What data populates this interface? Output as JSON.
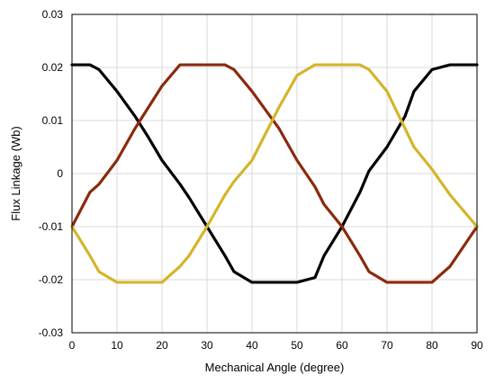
{
  "chart_data": {
    "type": "line",
    "title": "",
    "xlabel": "Mechanical Angle (degree)",
    "ylabel": "Flux Linkage (Wb)",
    "xlim": [
      0,
      90
    ],
    "ylim": [
      -0.03,
      0.03
    ],
    "xticks": [
      0,
      10,
      20,
      30,
      40,
      50,
      60,
      70,
      80,
      90
    ],
    "yticks": [
      0.03,
      0.02,
      0.01,
      0,
      -0.01,
      -0.02,
      -0.03
    ],
    "xtick_labels": [
      "0",
      "10",
      "20",
      "30",
      "40",
      "50",
      "60",
      "70",
      "80",
      "90"
    ],
    "ytick_labels": [
      "0.03",
      "0.02",
      "0.01",
      "0",
      "-0.01",
      "-0.02",
      "-0.03"
    ],
    "grid": true,
    "legend": "none",
    "series": [
      {
        "color": "#000000",
        "x": [
          0,
          4,
          6,
          10,
          14,
          17,
          20,
          24,
          26,
          30,
          34,
          36,
          40,
          46,
          50,
          54,
          56,
          60,
          64,
          66,
          70,
          74,
          76,
          80,
          84,
          90
        ],
        "y": [
          0.0205,
          0.0205,
          0.0196,
          0.0155,
          0.0108,
          0.0068,
          0.0025,
          -0.002,
          -0.0045,
          -0.01,
          -0.0155,
          -0.0185,
          -0.0205,
          -0.0205,
          -0.0205,
          -0.0196,
          -0.0155,
          -0.01,
          -0.0035,
          0.0005,
          0.005,
          0.0108,
          0.0155,
          0.0196,
          0.0205,
          0.0205
        ]
      },
      {
        "color": "#8b2a0e",
        "x": [
          0,
          4,
          6,
          10,
          14,
          17,
          20,
          24,
          26,
          30,
          34,
          36,
          40,
          46,
          50,
          54,
          56,
          60,
          64,
          66,
          70,
          74,
          76,
          80,
          84,
          90
        ],
        "y": [
          -0.01,
          -0.0035,
          -0.002,
          0.0025,
          0.0085,
          0.0125,
          0.0165,
          0.0205,
          0.0205,
          0.0205,
          0.0205,
          0.0196,
          0.0155,
          0.0085,
          0.0025,
          -0.0025,
          -0.0058,
          -0.01,
          -0.0155,
          -0.0185,
          -0.0205,
          -0.0205,
          -0.0205,
          -0.0205,
          -0.0175,
          -0.01
        ]
      },
      {
        "color": "#d4b529",
        "x": [
          0,
          4,
          6,
          10,
          14,
          17,
          20,
          24,
          26,
          30,
          34,
          36,
          40,
          46,
          50,
          54,
          56,
          60,
          64,
          66,
          70,
          74,
          76,
          80,
          84,
          90
        ],
        "y": [
          -0.01,
          -0.0155,
          -0.0185,
          -0.0205,
          -0.0205,
          -0.0205,
          -0.0205,
          -0.0175,
          -0.0155,
          -0.01,
          -0.004,
          -0.0015,
          0.0025,
          0.0125,
          0.0185,
          0.0205,
          0.0205,
          0.0205,
          0.0205,
          0.0196,
          0.0155,
          0.0085,
          0.005,
          0.0008,
          -0.004,
          -0.01
        ]
      }
    ]
  }
}
